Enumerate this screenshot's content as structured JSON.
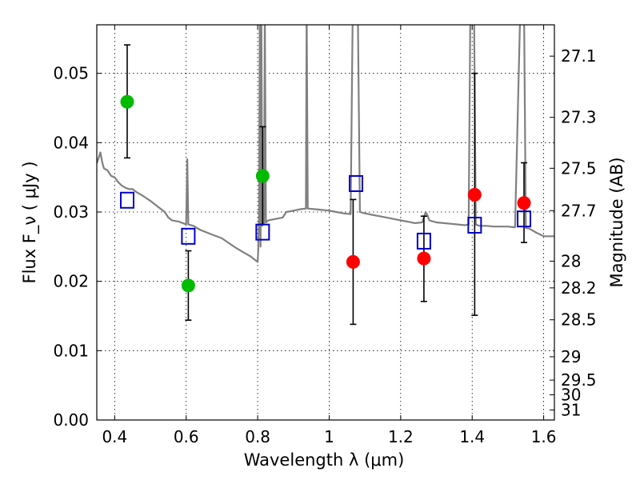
{
  "chart_data": {
    "type": "scatter",
    "title": "",
    "xlabel": "Wavelength  λ (μm)",
    "ylabel": "Flux  F_ν  ( μJy )",
    "y2label": "Magnitude (AB)",
    "xlim": [
      0.35,
      1.63
    ],
    "ylim": [
      0.0,
      0.057
    ],
    "grid": true,
    "legend": "none",
    "x_ticks": [
      {
        "v": 0.4,
        "label": "0.4"
      },
      {
        "v": 0.6,
        "label": "0.6"
      },
      {
        "v": 0.8,
        "label": "0.8"
      },
      {
        "v": 1.0,
        "label": "1"
      },
      {
        "v": 1.2,
        "label": "1.2"
      },
      {
        "v": 1.4,
        "label": "1.4"
      },
      {
        "v": 1.6,
        "label": "1.6"
      }
    ],
    "y_ticks": [
      {
        "v": 0.0,
        "label": "0.00"
      },
      {
        "v": 0.01,
        "label": "0.01"
      },
      {
        "v": 0.02,
        "label": "0.02"
      },
      {
        "v": 0.03,
        "label": "0.03"
      },
      {
        "v": 0.04,
        "label": "0.04"
      },
      {
        "v": 0.05,
        "label": "0.05"
      }
    ],
    "y2_ticks": [
      {
        "mag": 27.1,
        "label": "27.1"
      },
      {
        "mag": 27.3,
        "label": "27.3"
      },
      {
        "mag": 27.5,
        "label": "27.5"
      },
      {
        "mag": 27.7,
        "label": "27.7"
      },
      {
        "mag": 28.0,
        "label": "28"
      },
      {
        "mag": 28.2,
        "label": "28.2"
      },
      {
        "mag": 28.5,
        "label": "28.5"
      },
      {
        "mag": 29.0,
        "label": "29"
      },
      {
        "mag": 29.5,
        "label": "29.5"
      },
      {
        "mag": 30.0,
        "label": "30"
      },
      {
        "mag": 31.0,
        "label": "31"
      }
    ],
    "series": [
      {
        "kind": "observed",
        "color": "#00bb00",
        "points": [
          {
            "x": 0.435,
            "y": 0.0459,
            "lo": 0.0378,
            "hi": 0.0541
          },
          {
            "x": 0.606,
            "y": 0.0194,
            "lo": 0.0144,
            "hi": 0.0244
          },
          {
            "x": 0.814,
            "y": 0.0352,
            "lo": 0.0282,
            "hi": 0.0423
          }
        ]
      },
      {
        "kind": "observed",
        "color": "#ff0000",
        "points": [
          {
            "x": 1.067,
            "y": 0.0228,
            "lo": 0.0138,
            "hi": 0.0318
          },
          {
            "x": 1.265,
            "y": 0.0233,
            "lo": 0.0171,
            "hi": 0.0294
          },
          {
            "x": 1.407,
            "y": 0.0325,
            "lo": 0.0151,
            "hi": 0.05
          },
          {
            "x": 1.545,
            "y": 0.0313,
            "lo": 0.0256,
            "hi": 0.0371
          }
        ]
      },
      {
        "kind": "model-photometry",
        "color": "#0000cc",
        "points": [
          {
            "x": 0.435,
            "y": 0.0317
          },
          {
            "x": 0.606,
            "y": 0.0265
          },
          {
            "x": 0.814,
            "y": 0.0271
          },
          {
            "x": 1.075,
            "y": 0.0341
          },
          {
            "x": 1.265,
            "y": 0.0258
          },
          {
            "x": 1.407,
            "y": 0.0281
          },
          {
            "x": 1.545,
            "y": 0.029
          }
        ]
      }
    ],
    "model_spectrum": {
      "color": "#808080",
      "points": [
        [
          0.35,
          0.037
        ],
        [
          0.36,
          0.0386
        ],
        [
          0.365,
          0.0372
        ],
        [
          0.37,
          0.0363
        ],
        [
          0.38,
          0.036
        ],
        [
          0.39,
          0.0352
        ],
        [
          0.4,
          0.035
        ],
        [
          0.41,
          0.0343
        ],
        [
          0.42,
          0.0338
        ],
        [
          0.43,
          0.0335
        ],
        [
          0.44,
          0.0333
        ],
        [
          0.45,
          0.0333
        ],
        [
          0.46,
          0.0329
        ],
        [
          0.48,
          0.0323
        ],
        [
          0.5,
          0.0316
        ],
        [
          0.52,
          0.0308
        ],
        [
          0.54,
          0.03
        ],
        [
          0.55,
          0.0292
        ],
        [
          0.56,
          0.0288
        ],
        [
          0.58,
          0.0286
        ],
        [
          0.595,
          0.0283
        ],
        [
          0.6,
          0.0282
        ],
        [
          0.603,
          0.0376
        ],
        [
          0.606,
          0.0282
        ],
        [
          0.62,
          0.028
        ],
        [
          0.64,
          0.0274
        ],
        [
          0.66,
          0.027
        ],
        [
          0.68,
          0.0266
        ],
        [
          0.7,
          0.0262
        ],
        [
          0.72,
          0.0255
        ],
        [
          0.74,
          0.0248
        ],
        [
          0.76,
          0.0242
        ],
        [
          0.78,
          0.0236
        ],
        [
          0.795,
          0.023
        ],
        [
          0.8,
          0.0228
        ],
        [
          0.802,
          0.025
        ],
        [
          0.804,
          0.03
        ],
        [
          0.806,
          0.06
        ],
        [
          0.808,
          0.025
        ],
        [
          0.81,
          0.06
        ],
        [
          0.813,
          0.028
        ],
        [
          0.818,
          0.0285
        ],
        [
          0.82,
          0.06
        ],
        [
          0.823,
          0.0285
        ],
        [
          0.83,
          0.0288
        ],
        [
          0.85,
          0.029
        ],
        [
          0.87,
          0.0292
        ],
        [
          0.88,
          0.03
        ],
        [
          0.9,
          0.0302
        ],
        [
          0.92,
          0.0304
        ],
        [
          0.935,
          0.0305
        ],
        [
          0.937,
          0.06
        ],
        [
          0.94,
          0.0305
        ],
        [
          0.96,
          0.0304
        ],
        [
          0.98,
          0.0303
        ],
        [
          1.0,
          0.0302
        ],
        [
          1.02,
          0.03
        ],
        [
          1.04,
          0.0298
        ],
        [
          1.06,
          0.0297
        ],
        [
          1.066,
          0.06
        ],
        [
          1.08,
          0.06
        ],
        [
          1.086,
          0.03
        ],
        [
          1.1,
          0.0298
        ],
        [
          1.12,
          0.0296
        ],
        [
          1.14,
          0.0294
        ],
        [
          1.16,
          0.0292
        ],
        [
          1.18,
          0.029
        ],
        [
          1.2,
          0.0288
        ],
        [
          1.22,
          0.0286
        ],
        [
          1.24,
          0.0284
        ],
        [
          1.26,
          0.0285
        ],
        [
          1.27,
          0.03
        ],
        [
          1.275,
          0.0295
        ],
        [
          1.28,
          0.0288
        ],
        [
          1.3,
          0.0285
        ],
        [
          1.32,
          0.0284
        ],
        [
          1.34,
          0.0283
        ],
        [
          1.36,
          0.0282
        ],
        [
          1.38,
          0.0281
        ],
        [
          1.39,
          0.0282
        ],
        [
          1.395,
          0.06
        ],
        [
          1.405,
          0.06
        ],
        [
          1.41,
          0.0282
        ],
        [
          1.42,
          0.028
        ],
        [
          1.44,
          0.028
        ],
        [
          1.46,
          0.0279
        ],
        [
          1.48,
          0.0279
        ],
        [
          1.5,
          0.0279
        ],
        [
          1.52,
          0.0278
        ],
        [
          1.535,
          0.06
        ],
        [
          1.545,
          0.06
        ],
        [
          1.55,
          0.0277
        ],
        [
          1.56,
          0.0276
        ],
        [
          1.58,
          0.027
        ],
        [
          1.6,
          0.0265
        ],
        [
          1.63,
          0.0265
        ]
      ]
    }
  }
}
